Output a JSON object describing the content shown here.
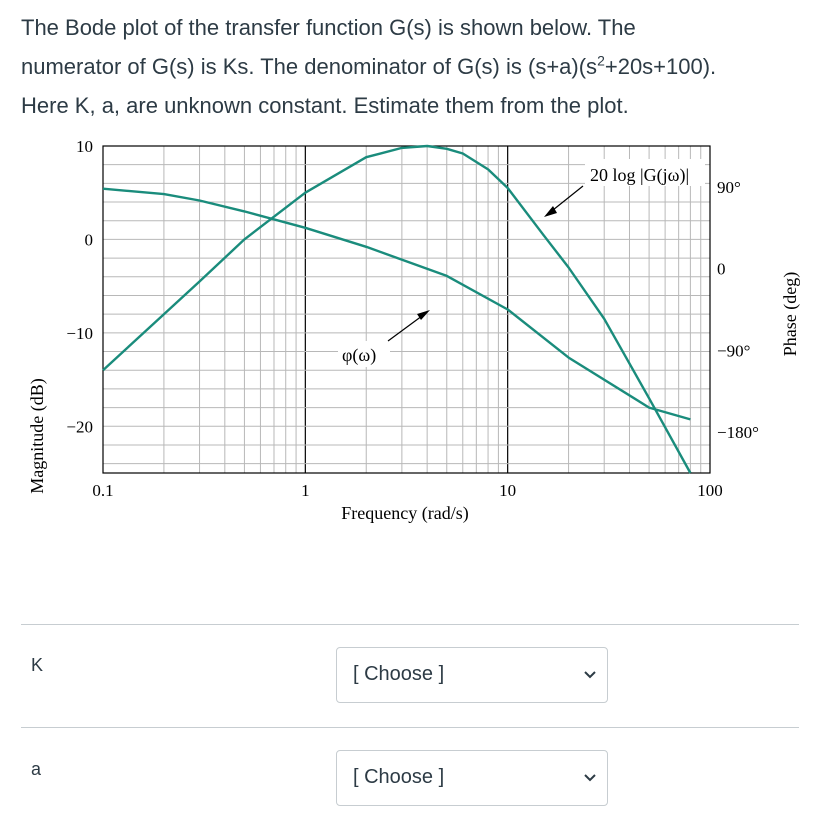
{
  "question": {
    "line1": "The Bode plot of the transfer function G(s) is shown below. The",
    "line2_a": "numerator of G(s) is Ks.  The denominator of G(s) is (s+a)(s",
    "line2_sup": "2",
    "line2_b": "+20s+100).",
    "line3": "Here K, a, are unknown constant.  Estimate them from the plot."
  },
  "chart_data": {
    "type": "line",
    "xlabel": "Frequency (rad/s)",
    "ylabel": "Magnitude (dB)",
    "y2label": "Phase (deg)",
    "xscale": "log",
    "xlim": [
      0.1,
      100
    ],
    "ylim": [
      -25,
      10
    ],
    "y2lim": [
      -225,
      135
    ],
    "x_ticks": [
      "0.1",
      "1",
      "10",
      "100"
    ],
    "y_ticks": [
      "10",
      "0",
      "−10",
      "−20"
    ],
    "y2_ticks": [
      "90°",
      "0",
      "−90°",
      "−180°"
    ],
    "grid": true,
    "series": [
      {
        "name": "20 log |G(jω)|",
        "x": [
          0.1,
          0.2,
          0.3,
          0.5,
          1,
          2,
          3,
          4,
          5,
          6,
          8,
          10,
          15,
          20,
          30,
          50,
          80
        ],
        "y": [
          -14,
          -8,
          -4.5,
          0,
          5,
          8.8,
          9.8,
          10,
          9.7,
          9.2,
          7.5,
          5.5,
          0.5,
          -3,
          -8.5,
          -17,
          -25
        ]
      },
      {
        "name": "φ(ω)",
        "x": [
          0.1,
          0.2,
          0.3,
          0.5,
          1,
          2,
          5,
          10,
          20,
          50,
          80
        ],
        "y": [
          88,
          82,
          75,
          63,
          45,
          24,
          -8,
          -45,
          -98,
          -153,
          -166
        ]
      }
    ],
    "annotations": [
      "20 log |G(jω)|",
      "φ(ω)"
    ]
  },
  "answers": [
    {
      "label": "K",
      "value": "[ Choose ]"
    },
    {
      "label": "a",
      "value": "[ Choose ]"
    }
  ],
  "colors": {
    "curve": "#1a8c7c",
    "grid": "#b8b8b8",
    "text": "#2d3b45"
  }
}
